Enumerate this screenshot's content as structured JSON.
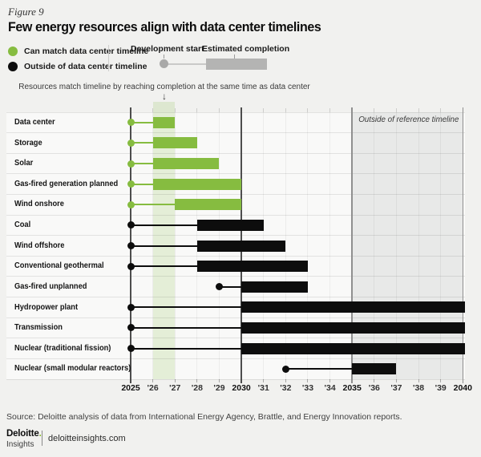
{
  "figure_label": "Figure 9",
  "title": "Few energy resources align with data center timelines",
  "legend": {
    "match_label": "Can match data center timeline",
    "outside_label": "Outside of data center timeline",
    "dev_start_label": "Development start",
    "est_completion_label": "Estimated completion"
  },
  "annotation": {
    "text": "Resources match timeline by reaching completion at the same time as data center",
    "arrow": "↓"
  },
  "chart_data": {
    "type": "gantt",
    "x_axis": {
      "min": 2025,
      "max": 2040,
      "unit": "year",
      "ticks": [
        {
          "year": 2025,
          "label": "2025",
          "major": true
        },
        {
          "year": 2026,
          "label": "'26",
          "major": false
        },
        {
          "year": 2027,
          "label": "'27",
          "major": false
        },
        {
          "year": 2028,
          "label": "'28",
          "major": false
        },
        {
          "year": 2029,
          "label": "'29",
          "major": false
        },
        {
          "year": 2030,
          "label": "2030",
          "major": true
        },
        {
          "year": 2031,
          "label": "'31",
          "major": false
        },
        {
          "year": 2032,
          "label": "'32",
          "major": false
        },
        {
          "year": 2033,
          "label": "'33",
          "major": false
        },
        {
          "year": 2034,
          "label": "'34",
          "major": false
        },
        {
          "year": 2035,
          "label": "2035",
          "major": true
        },
        {
          "year": 2036,
          "label": "'36",
          "major": false
        },
        {
          "year": 2037,
          "label": "'37",
          "major": false
        },
        {
          "year": 2038,
          "label": "'38",
          "major": false
        },
        {
          "year": 2039,
          "label": "'39",
          "major": false
        },
        {
          "year": 2040,
          "label": "2040",
          "major": true
        }
      ]
    },
    "highlight_band": {
      "from": 2026,
      "to": 2027
    },
    "outside_region": {
      "from": 2035,
      "to": 2040,
      "label": "Outside of reference timeline"
    },
    "rows": [
      {
        "label": "Data center",
        "category": "match",
        "dev_start": 2025,
        "build_start": 2026,
        "completion": 2027,
        "overflow": false
      },
      {
        "label": "Storage",
        "category": "match",
        "dev_start": 2025,
        "build_start": 2026,
        "completion": 2028,
        "overflow": false
      },
      {
        "label": "Solar",
        "category": "match",
        "dev_start": 2025,
        "build_start": 2026,
        "completion": 2029,
        "overflow": false
      },
      {
        "label": "Gas-fired generation planned",
        "category": "match",
        "dev_start": 2025,
        "build_start": 2026,
        "completion": 2030,
        "overflow": false
      },
      {
        "label": "Wind onshore",
        "category": "match",
        "dev_start": 2025,
        "build_start": 2027,
        "completion": 2030,
        "overflow": false
      },
      {
        "label": "Coal",
        "category": "outside",
        "dev_start": 2025,
        "build_start": 2028,
        "completion": 2031,
        "overflow": false
      },
      {
        "label": "Wind offshore",
        "category": "outside",
        "dev_start": 2025,
        "build_start": 2028,
        "completion": 2032,
        "overflow": false
      },
      {
        "label": "Conventional geothermal",
        "category": "outside",
        "dev_start": 2025,
        "build_start": 2028,
        "completion": 2033,
        "overflow": false
      },
      {
        "label": "Gas-fired unplanned",
        "category": "outside",
        "dev_start": 2029,
        "build_start": 2030,
        "completion": 2033,
        "overflow": false
      },
      {
        "label": "Hydropower plant",
        "category": "outside",
        "dev_start": 2025,
        "build_start": 2030,
        "completion": 2040,
        "overflow": true
      },
      {
        "label": "Transmission",
        "category": "outside",
        "dev_start": 2025,
        "build_start": 2030,
        "completion": 2040,
        "overflow": true
      },
      {
        "label": "Nuclear (traditional fission)",
        "category": "outside",
        "dev_start": 2025,
        "build_start": 2030,
        "completion": 2040,
        "overflow": true
      },
      {
        "label": "Nuclear (small modular reactors)",
        "category": "outside",
        "dev_start": 2032,
        "build_start": 2035,
        "completion": 2037,
        "overflow": false
      }
    ],
    "colors": {
      "match": "#86BC40",
      "outside": "#0d0d0d",
      "band": "rgba(134,188,64,0.18)",
      "outside_region_bg": "#e8e9e8",
      "major_axis_line": "#4d4d4d",
      "region_border": "#8f8f8f"
    }
  },
  "source": "Source: Deloitte analysis of data from International Energy Agency, Brattle, and Energy Innovation reports.",
  "footer": {
    "brand_name": "Deloitte",
    "brand_dot": ".",
    "brand_sub": "Insights",
    "site": "deloitteinsights.com"
  }
}
